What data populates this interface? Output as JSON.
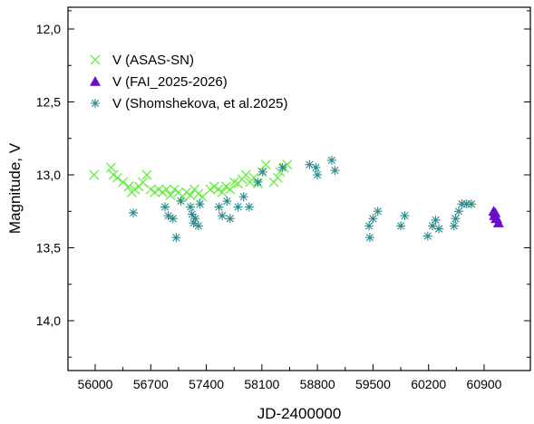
{
  "chart_data": {
    "type": "scatter",
    "xlabel": "JD-2400000",
    "ylabel": "Magnitude, V",
    "xlim": [
      55800,
      61200
    ],
    "ylim": [
      12.0,
      14.25
    ],
    "y_inverted": true,
    "x_ticks": [
      56000,
      56700,
      57400,
      58100,
      58800,
      59500,
      60200,
      60900
    ],
    "x_tick_labels": [
      "56000",
      "56700",
      "57400",
      "58100",
      "58800",
      "59500",
      "60200",
      "60900"
    ],
    "y_ticks": [
      12.0,
      12.5,
      13.0,
      13.5,
      14.0
    ],
    "y_tick_labels": [
      "12,0",
      "12,5",
      "13,0",
      "13,5",
      "14,0"
    ],
    "grid": false,
    "legend_position": "top-left",
    "series": [
      {
        "name": "V (ASAS-SN)",
        "marker": "x",
        "color": "#66ee44",
        "points": [
          [
            55985,
            13.0
          ],
          [
            56200,
            12.95
          ],
          [
            56230,
            13.0
          ],
          [
            56280,
            13.02
          ],
          [
            56350,
            13.05
          ],
          [
            56420,
            13.08
          ],
          [
            56460,
            13.12
          ],
          [
            56500,
            13.1
          ],
          [
            56550,
            13.08
          ],
          [
            56600,
            13.05
          ],
          [
            56650,
            13.0
          ],
          [
            56700,
            13.1
          ],
          [
            56750,
            13.12
          ],
          [
            56800,
            13.1
          ],
          [
            56850,
            13.12
          ],
          [
            56900,
            13.1
          ],
          [
            56950,
            13.14
          ],
          [
            57000,
            13.1
          ],
          [
            57050,
            13.12
          ],
          [
            57100,
            13.15
          ],
          [
            57150,
            13.12
          ],
          [
            57200,
            13.14
          ],
          [
            57250,
            13.1
          ],
          [
            57300,
            13.13
          ],
          [
            57350,
            13.15
          ],
          [
            57450,
            13.1
          ],
          [
            57500,
            13.08
          ],
          [
            57550,
            13.1
          ],
          [
            57600,
            13.12
          ],
          [
            57650,
            13.08
          ],
          [
            57700,
            13.1
          ],
          [
            57750,
            13.05
          ],
          [
            57800,
            13.06
          ],
          [
            57850,
            13.03
          ],
          [
            57900,
            13.0
          ],
          [
            57950,
            13.05
          ],
          [
            58000,
            13.02
          ],
          [
            58050,
            13.06
          ],
          [
            58100,
            12.98
          ],
          [
            58150,
            12.93
          ],
          [
            58250,
            13.05
          ],
          [
            58300,
            13.02
          ],
          [
            58330,
            12.98
          ],
          [
            58380,
            12.95
          ],
          [
            58420,
            12.93
          ]
        ]
      },
      {
        "name": "V (FAI_2025-2026)",
        "marker": "triangle",
        "color": "#6a0dcc",
        "points": [
          [
            61020,
            13.25
          ],
          [
            61030,
            13.28
          ],
          [
            61040,
            13.26
          ],
          [
            61050,
            13.3
          ],
          [
            61060,
            13.3
          ],
          [
            61080,
            13.33
          ]
        ]
      },
      {
        "name": "V (Shomshekova, et al.2025)",
        "marker": "asterisk",
        "color": "#2a8a8a",
        "points": [
          [
            56480,
            13.26
          ],
          [
            56880,
            13.22
          ],
          [
            56920,
            13.28
          ],
          [
            56980,
            13.3
          ],
          [
            57020,
            13.43
          ],
          [
            57080,
            13.18
          ],
          [
            57200,
            13.22
          ],
          [
            57220,
            13.27
          ],
          [
            57240,
            13.33
          ],
          [
            57260,
            13.3
          ],
          [
            57300,
            13.35
          ],
          [
            57320,
            13.2
          ],
          [
            57560,
            13.22
          ],
          [
            57600,
            13.28
          ],
          [
            57660,
            13.18
          ],
          [
            57700,
            13.3
          ],
          [
            57800,
            13.22
          ],
          [
            57870,
            13.15
          ],
          [
            57940,
            13.22
          ],
          [
            58050,
            13.05
          ],
          [
            58110,
            12.98
          ],
          [
            58360,
            12.95
          ],
          [
            58700,
            12.93
          ],
          [
            58780,
            12.95
          ],
          [
            58800,
            13.0
          ],
          [
            58980,
            12.9
          ],
          [
            59020,
            12.97
          ],
          [
            59450,
            13.35
          ],
          [
            59460,
            13.43
          ],
          [
            59500,
            13.3
          ],
          [
            59560,
            13.25
          ],
          [
            59850,
            13.35
          ],
          [
            59900,
            13.28
          ],
          [
            60190,
            13.42
          ],
          [
            60250,
            13.35
          ],
          [
            60290,
            13.31
          ],
          [
            60330,
            13.37
          ],
          [
            60520,
            13.35
          ],
          [
            60540,
            13.3
          ],
          [
            60580,
            13.25
          ],
          [
            60620,
            13.2
          ],
          [
            60680,
            13.2
          ],
          [
            60740,
            13.2
          ]
        ]
      }
    ]
  }
}
